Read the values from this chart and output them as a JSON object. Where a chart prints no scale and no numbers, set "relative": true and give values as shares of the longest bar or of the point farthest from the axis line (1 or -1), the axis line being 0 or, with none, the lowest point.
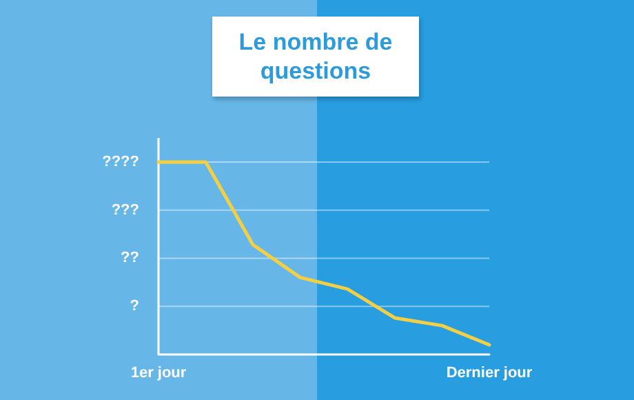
{
  "chart_data": {
    "type": "line",
    "title": "Le nombre de questions",
    "categories": [
      "1er jour",
      null,
      null,
      null,
      null,
      null,
      null,
      "Dernier jour"
    ],
    "series": [
      {
        "color": "#f3cf45",
        "values": [
          1,
          1,
          0.57,
          0.4,
          0.34,
          0.19,
          0.15,
          0.05
        ]
      }
    ],
    "relative": true,
    "annotations": [
      "?",
      "??",
      "???",
      "????"
    ],
    "grid": "y",
    "marker": "none",
    "line_style": "solid"
  }
}
